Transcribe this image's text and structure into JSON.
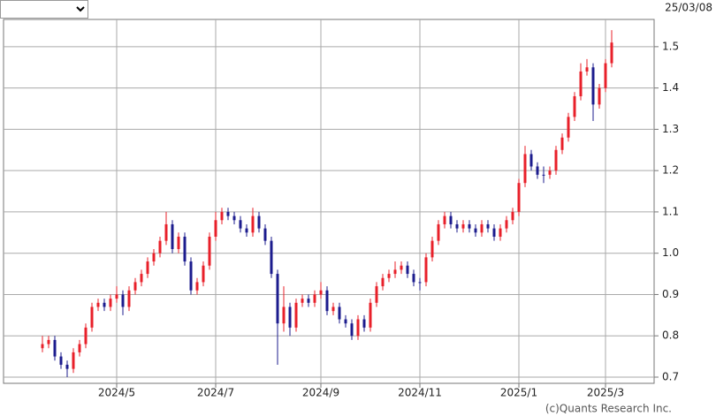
{
  "header": {
    "date": "25/03/08"
  },
  "footer": {
    "copyright": "(c)Quants Research Inc."
  },
  "chart_data": {
    "type": "candlestick",
    "categories": [
      null,
      null,
      null,
      null,
      null,
      null,
      null,
      null,
      null,
      null,
      null,
      null,
      "2024/5",
      null,
      null,
      null,
      null,
      null,
      null,
      null,
      null,
      null,
      null,
      null,
      null,
      null,
      null,
      null,
      "2024/7",
      null,
      null,
      null,
      null,
      null,
      null,
      null,
      null,
      null,
      null,
      null,
      null,
      null,
      null,
      null,
      null,
      "2024/9",
      null,
      null,
      null,
      null,
      null,
      null,
      null,
      null,
      null,
      null,
      null,
      null,
      null,
      null,
      null,
      "2024/11",
      null,
      null,
      null,
      null,
      null,
      null,
      null,
      null,
      null,
      null,
      null,
      null,
      null,
      null,
      null,
      "2025/1",
      null,
      null,
      null,
      null,
      null,
      null,
      null,
      null,
      null,
      null,
      null,
      null,
      null,
      "2025/3",
      null
    ],
    "open": [
      0.77,
      0.78,
      0.79,
      0.75,
      0.73,
      0.72,
      0.76,
      0.78,
      0.82,
      0.87,
      0.88,
      0.87,
      0.89,
      0.9,
      0.87,
      0.91,
      0.93,
      0.95,
      0.98,
      1.0,
      1.03,
      1.07,
      1.01,
      1.04,
      0.98,
      0.91,
      0.93,
      0.97,
      1.04,
      1.08,
      1.1,
      1.09,
      1.08,
      1.06,
      1.05,
      1.09,
      1.06,
      1.03,
      0.95,
      0.83,
      0.87,
      0.82,
      0.88,
      0.89,
      0.88,
      0.9,
      0.91,
      0.86,
      0.87,
      0.84,
      0.83,
      0.8,
      0.84,
      0.82,
      0.88,
      0.92,
      0.94,
      0.95,
      0.96,
      0.97,
      0.95,
      0.93,
      0.93,
      0.99,
      1.03,
      1.07,
      1.09,
      1.07,
      1.06,
      1.07,
      1.06,
      1.05,
      1.07,
      1.06,
      1.04,
      1.06,
      1.08,
      1.1,
      1.17,
      1.24,
      1.21,
      1.19,
      1.19,
      1.2,
      1.25,
      1.28,
      1.33,
      1.38,
      1.44,
      1.45,
      1.36,
      1.4,
      1.46
    ],
    "high": [
      0.8,
      0.8,
      0.8,
      0.76,
      0.74,
      0.77,
      0.79,
      0.83,
      0.88,
      0.89,
      0.89,
      0.9,
      0.92,
      0.91,
      0.92,
      0.94,
      0.96,
      0.99,
      1.01,
      1.04,
      1.1,
      1.08,
      1.05,
      1.05,
      0.99,
      0.94,
      0.98,
      1.05,
      1.1,
      1.11,
      1.11,
      1.1,
      1.09,
      1.07,
      1.11,
      1.1,
      1.07,
      1.04,
      0.96,
      0.92,
      0.88,
      0.89,
      0.9,
      0.9,
      0.91,
      0.93,
      0.92,
      0.88,
      0.88,
      0.85,
      0.84,
      0.85,
      0.85,
      0.89,
      0.93,
      0.95,
      0.96,
      0.98,
      0.98,
      0.98,
      0.96,
      0.94,
      1.0,
      1.04,
      1.08,
      1.1,
      1.1,
      1.08,
      1.08,
      1.08,
      1.07,
      1.08,
      1.08,
      1.07,
      1.07,
      1.09,
      1.11,
      1.18,
      1.26,
      1.25,
      1.22,
      1.21,
      1.21,
      1.26,
      1.29,
      1.34,
      1.39,
      1.46,
      1.47,
      1.46,
      1.41,
      1.47,
      1.54
    ],
    "low": [
      0.76,
      0.77,
      0.74,
      0.72,
      0.7,
      0.71,
      0.75,
      0.77,
      0.81,
      0.86,
      0.86,
      0.86,
      0.88,
      0.85,
      0.86,
      0.9,
      0.92,
      0.94,
      0.97,
      0.99,
      1.02,
      1.0,
      1.0,
      0.97,
      0.9,
      0.9,
      0.92,
      0.96,
      1.03,
      1.07,
      1.08,
      1.07,
      1.05,
      1.04,
      1.04,
      1.05,
      1.02,
      0.94,
      0.73,
      0.81,
      0.8,
      0.81,
      0.87,
      0.87,
      0.87,
      0.89,
      0.85,
      0.85,
      0.83,
      0.82,
      0.79,
      0.79,
      0.81,
      0.81,
      0.87,
      0.91,
      0.93,
      0.94,
      0.95,
      0.94,
      0.92,
      0.91,
      0.92,
      0.98,
      1.02,
      1.06,
      1.06,
      1.05,
      1.05,
      1.05,
      1.04,
      1.04,
      1.05,
      1.03,
      1.03,
      1.05,
      1.07,
      1.09,
      1.16,
      1.2,
      1.18,
      1.17,
      1.18,
      1.19,
      1.24,
      1.27,
      1.32,
      1.37,
      1.43,
      1.32,
      1.35,
      1.39,
      1.45
    ],
    "close": [
      0.78,
      0.79,
      0.75,
      0.73,
      0.72,
      0.76,
      0.78,
      0.82,
      0.87,
      0.88,
      0.87,
      0.89,
      0.9,
      0.87,
      0.91,
      0.93,
      0.95,
      0.98,
      1.0,
      1.03,
      1.07,
      1.01,
      1.04,
      0.98,
      0.91,
      0.93,
      0.97,
      1.04,
      1.08,
      1.1,
      1.09,
      1.08,
      1.06,
      1.05,
      1.09,
      1.06,
      1.03,
      0.95,
      0.83,
      0.87,
      0.82,
      0.88,
      0.89,
      0.88,
      0.9,
      0.91,
      0.86,
      0.87,
      0.84,
      0.83,
      0.8,
      0.84,
      0.82,
      0.88,
      0.92,
      0.94,
      0.95,
      0.96,
      0.97,
      0.95,
      0.93,
      0.93,
      0.99,
      1.03,
      1.07,
      1.09,
      1.07,
      1.06,
      1.07,
      1.06,
      1.05,
      1.07,
      1.06,
      1.04,
      1.06,
      1.08,
      1.1,
      1.17,
      1.24,
      1.21,
      1.19,
      1.19,
      1.2,
      1.25,
      1.28,
      1.33,
      1.38,
      1.44,
      1.45,
      1.36,
      1.4,
      1.46,
      1.51
    ],
    "up_color": "#e8202a",
    "down_color": "#1c1c8e",
    "ylim": [
      0.685,
      1.566
    ],
    "yticks": [
      0.7,
      0.8,
      0.9,
      {
        "value": 1,
        "label": "1.0"
      },
      1.1,
      1.2,
      1.3,
      1.4,
      1.5
    ],
    "grid": true
  }
}
